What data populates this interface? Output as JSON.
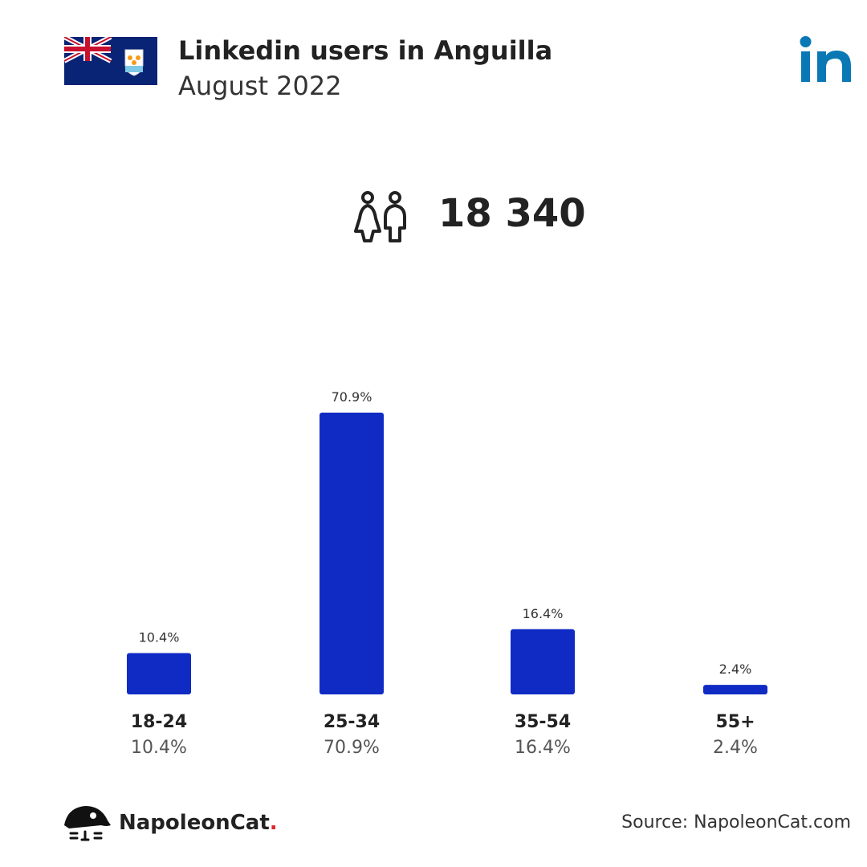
{
  "header": {
    "title": "Linkedin users in Anguilla",
    "subtitle": "August 2022"
  },
  "summary": {
    "total_users": "18 340"
  },
  "icons": {
    "flag": "anguilla-flag-icon",
    "logo": "linkedin-logo-icon",
    "users": "users-icon",
    "brand": "napoleoncat-logo-icon"
  },
  "colors": {
    "bar": "#102bc4",
    "linkedin": "#0a78b5",
    "brand_dot": "#e0262a"
  },
  "chart_data": {
    "type": "bar",
    "categories": [
      "18-24",
      "25-34",
      "35-54",
      "55+"
    ],
    "values": [
      10.4,
      70.9,
      16.4,
      2.4
    ],
    "value_labels": [
      "10.4%",
      "70.9%",
      "16.4%",
      "2.4%"
    ],
    "title": "",
    "xlabel": "",
    "ylabel": "",
    "ylim": [
      0,
      70.9
    ]
  },
  "footer": {
    "brand_name": "NapoleonCat",
    "brand_dot": ".",
    "source": "Source: NapoleonCat.com"
  }
}
